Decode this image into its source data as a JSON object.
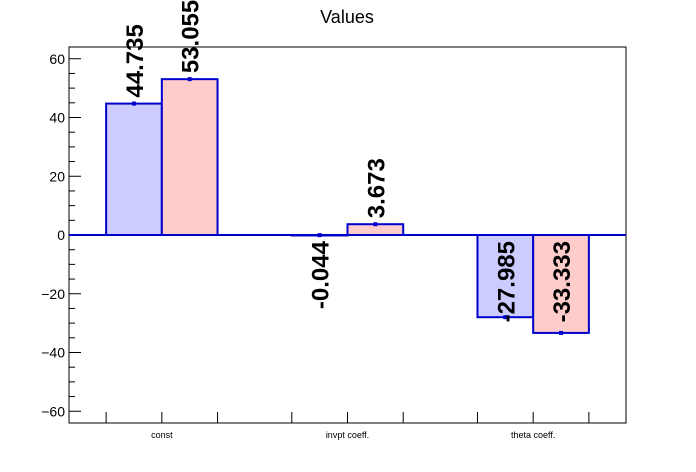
{
  "chart_data": {
    "type": "bar",
    "title": "Values",
    "xlabel": "",
    "ylabel": "",
    "categories": [
      "const",
      "invpt coeff.",
      "theta coeff."
    ],
    "ylim": [
      -64,
      64
    ],
    "yticks": [
      -60,
      -40,
      -20,
      0,
      20,
      40,
      60
    ],
    "ytick_labels": [
      "−60",
      "−40",
      "−20",
      "0",
      "20",
      "40",
      "60"
    ],
    "series": [
      {
        "values": [
          44.735,
          -0.044,
          -27.985
        ],
        "labels": [
          "44.735",
          "-0.044",
          "-27.985"
        ],
        "color": "#ccccff",
        "edge": "#0000cc"
      },
      {
        "values": [
          53.055,
          3.673,
          -33.333
        ],
        "labels": [
          "53.055",
          "3.673",
          "-33.333"
        ],
        "color": "#ffcccc",
        "edge": "#0000cc"
      }
    ],
    "grid": false,
    "legend": "none"
  }
}
